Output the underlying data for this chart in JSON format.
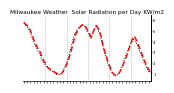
{
  "title": "Milwaukee Weather  Solar Radiation per Day KW/m2",
  "yticks": [
    1,
    2,
    3,
    4,
    5,
    6
  ],
  "ylim": [
    0.3,
    6.5
  ],
  "background_color": "#ffffff",
  "line1_color": "#ff0000",
  "line2_color": "#000000",
  "red_data": [
    5.8,
    5.6,
    5.5,
    5.3,
    5.0,
    4.6,
    4.2,
    3.8,
    3.5,
    3.2,
    3.0,
    2.6,
    2.2,
    2.0,
    1.7,
    1.5,
    1.4,
    1.3,
    1.2,
    1.1,
    1.0,
    1.0,
    0.9,
    1.0,
    1.2,
    1.5,
    1.8,
    2.2,
    2.7,
    3.2,
    3.8,
    4.4,
    4.8,
    5.1,
    5.3,
    5.5,
    5.6,
    5.5,
    5.3,
    5.0,
    4.7,
    4.4,
    4.8,
    5.2,
    5.5,
    5.3,
    5.0,
    4.5,
    3.8,
    3.2,
    2.8,
    2.2,
    1.8,
    1.4,
    1.1,
    0.9,
    0.8,
    0.9,
    1.0,
    1.3,
    1.6,
    2.0,
    2.4,
    2.8,
    3.3,
    3.7,
    4.2,
    4.5,
    4.3,
    4.0,
    3.6,
    3.2,
    2.8,
    2.4,
    2.0,
    1.7,
    1.4,
    1.1
  ],
  "black_data": [
    5.7,
    5.5,
    5.4,
    5.1,
    4.8,
    4.4,
    4.0,
    3.6,
    3.3,
    3.0,
    2.7,
    2.3,
    2.0,
    1.8,
    1.6,
    1.4,
    1.3,
    1.2,
    1.1,
    1.0,
    0.9,
    0.9,
    0.9,
    1.0,
    1.3,
    1.6,
    2.0,
    2.5,
    3.0,
    3.6,
    4.2,
    4.7,
    5.0,
    5.2,
    5.4,
    5.5,
    5.5,
    5.4,
    5.1,
    4.8,
    4.5,
    4.3,
    4.7,
    5.1,
    5.4,
    5.2,
    4.8,
    4.3,
    3.6,
    3.0,
    2.5,
    2.0,
    1.6,
    1.3,
    1.0,
    0.8,
    0.8,
    0.9,
    1.1,
    1.4,
    1.8,
    2.2,
    2.6,
    3.0,
    3.5,
    3.8,
    4.0,
    4.2,
    4.0,
    3.7,
    3.3,
    2.9,
    2.5,
    2.1,
    1.8,
    1.5,
    1.2,
    1.0
  ],
  "vline_positions": [
    13,
    26,
    39,
    52,
    65
  ],
  "title_fontsize": 4.2,
  "tick_fontsize": 2.8,
  "n_xticks": 39
}
